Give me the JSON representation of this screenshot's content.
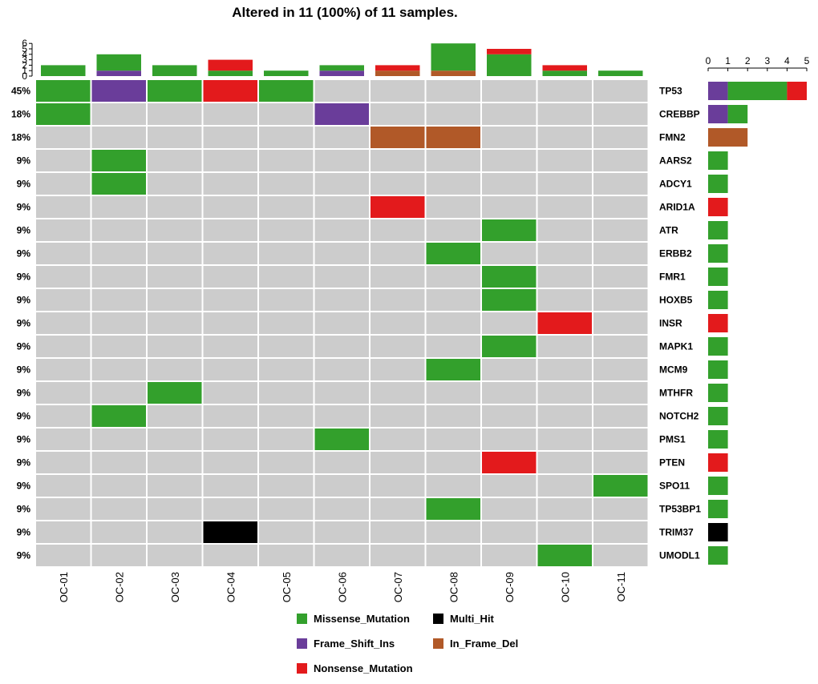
{
  "chart_data": {
    "type": "heatmap",
    "title": "Altered in 11 (100%) of 11 samples.",
    "samples": [
      "OC-01",
      "OC-02",
      "OC-03",
      "OC-04",
      "OC-05",
      "OC-06",
      "OC-07",
      "OC-08",
      "OC-09",
      "OC-10",
      "OC-11"
    ],
    "genes": [
      {
        "name": "TP53",
        "pct": "45%"
      },
      {
        "name": "CREBBP",
        "pct": "18%"
      },
      {
        "name": "FMN2",
        "pct": "18%"
      },
      {
        "name": "AARS2",
        "pct": "9%"
      },
      {
        "name": "ADCY1",
        "pct": "9%"
      },
      {
        "name": "ARID1A",
        "pct": "9%"
      },
      {
        "name": "ATR",
        "pct": "9%"
      },
      {
        "name": "ERBB2",
        "pct": "9%"
      },
      {
        "name": "FMR1",
        "pct": "9%"
      },
      {
        "name": "HOXB5",
        "pct": "9%"
      },
      {
        "name": "INSR",
        "pct": "9%"
      },
      {
        "name": "MAPK1",
        "pct": "9%"
      },
      {
        "name": "MCM9",
        "pct": "9%"
      },
      {
        "name": "MTHFR",
        "pct": "9%"
      },
      {
        "name": "NOTCH2",
        "pct": "9%"
      },
      {
        "name": "PMS1",
        "pct": "9%"
      },
      {
        "name": "PTEN",
        "pct": "9%"
      },
      {
        "name": "SPO11",
        "pct": "9%"
      },
      {
        "name": "TP53BP1",
        "pct": "9%"
      },
      {
        "name": "TRIM37",
        "pct": "9%"
      },
      {
        "name": "UMODL1",
        "pct": "9%"
      }
    ],
    "alterations": [
      [
        "TP53",
        "OC-01",
        "Missense_Mutation"
      ],
      [
        "TP53",
        "OC-02",
        "Frame_Shift_Ins"
      ],
      [
        "TP53",
        "OC-03",
        "Missense_Mutation"
      ],
      [
        "TP53",
        "OC-04",
        "Nonsense_Mutation"
      ],
      [
        "TP53",
        "OC-05",
        "Missense_Mutation"
      ],
      [
        "CREBBP",
        "OC-01",
        "Missense_Mutation"
      ],
      [
        "CREBBP",
        "OC-06",
        "Frame_Shift_Ins"
      ],
      [
        "FMN2",
        "OC-07",
        "In_Frame_Del"
      ],
      [
        "FMN2",
        "OC-08",
        "In_Frame_Del"
      ],
      [
        "AARS2",
        "OC-02",
        "Missense_Mutation"
      ],
      [
        "ADCY1",
        "OC-02",
        "Missense_Mutation"
      ],
      [
        "ARID1A",
        "OC-07",
        "Nonsense_Mutation"
      ],
      [
        "ATR",
        "OC-09",
        "Missense_Mutation"
      ],
      [
        "ERBB2",
        "OC-08",
        "Missense_Mutation"
      ],
      [
        "FMR1",
        "OC-09",
        "Missense_Mutation"
      ],
      [
        "HOXB5",
        "OC-09",
        "Missense_Mutation"
      ],
      [
        "INSR",
        "OC-10",
        "Nonsense_Mutation"
      ],
      [
        "MAPK1",
        "OC-09",
        "Missense_Mutation"
      ],
      [
        "MCM9",
        "OC-08",
        "Missense_Mutation"
      ],
      [
        "MTHFR",
        "OC-03",
        "Missense_Mutation"
      ],
      [
        "NOTCH2",
        "OC-02",
        "Missense_Mutation"
      ],
      [
        "PMS1",
        "OC-06",
        "Missense_Mutation"
      ],
      [
        "PTEN",
        "OC-09",
        "Nonsense_Mutation"
      ],
      [
        "SPO11",
        "OC-11",
        "Missense_Mutation"
      ],
      [
        "TP53BP1",
        "OC-08",
        "Missense_Mutation"
      ],
      [
        "TRIM37",
        "OC-04",
        "Multi_Hit"
      ],
      [
        "UMODL1",
        "OC-10",
        "Missense_Mutation"
      ]
    ],
    "top_bar": {
      "ylim": [
        0,
        6
      ],
      "ticks": [
        0,
        1,
        2,
        3,
        4,
        5,
        6
      ],
      "values": [
        {
          "sample": "OC-01",
          "segments": [
            [
              "Missense_Mutation",
              2
            ]
          ]
        },
        {
          "sample": "OC-02",
          "segments": [
            [
              "Frame_Shift_Ins",
              1
            ],
            [
              "Missense_Mutation",
              3
            ]
          ]
        },
        {
          "sample": "OC-03",
          "segments": [
            [
              "Missense_Mutation",
              2
            ]
          ]
        },
        {
          "sample": "OC-04",
          "segments": [
            [
              "Missense_Mutation",
              1
            ],
            [
              "Nonsense_Mutation",
              2
            ]
          ]
        },
        {
          "sample": "OC-05",
          "segments": [
            [
              "Missense_Mutation",
              1
            ]
          ]
        },
        {
          "sample": "OC-06",
          "segments": [
            [
              "Frame_Shift_Ins",
              1
            ],
            [
              "Missense_Mutation",
              1
            ]
          ]
        },
        {
          "sample": "OC-07",
          "segments": [
            [
              "In_Frame_Del",
              1
            ],
            [
              "Nonsense_Mutation",
              1
            ]
          ]
        },
        {
          "sample": "OC-08",
          "segments": [
            [
              "In_Frame_Del",
              1
            ],
            [
              "Missense_Mutation",
              5
            ]
          ]
        },
        {
          "sample": "OC-09",
          "segments": [
            [
              "Missense_Mutation",
              4
            ],
            [
              "Nonsense_Mutation",
              1
            ]
          ]
        },
        {
          "sample": "OC-10",
          "segments": [
            [
              "Missense_Mutation",
              1
            ],
            [
              "Nonsense_Mutation",
              1
            ]
          ]
        },
        {
          "sample": "OC-11",
          "segments": [
            [
              "Missense_Mutation",
              1
            ]
          ]
        }
      ]
    },
    "side_bar": {
      "xlim": [
        0,
        5
      ],
      "ticks": [
        0,
        1,
        2,
        3,
        4,
        5
      ],
      "values": [
        {
          "gene": "TP53",
          "segments": [
            [
              "Frame_Shift_Ins",
              1
            ],
            [
              "Missense_Mutation",
              3
            ],
            [
              "Nonsense_Mutation",
              1
            ]
          ]
        },
        {
          "gene": "CREBBP",
          "segments": [
            [
              "Frame_Shift_Ins",
              1
            ],
            [
              "Missense_Mutation",
              1
            ]
          ]
        },
        {
          "gene": "FMN2",
          "segments": [
            [
              "In_Frame_Del",
              2
            ]
          ]
        },
        {
          "gene": "AARS2",
          "segments": [
            [
              "Missense_Mutation",
              1
            ]
          ]
        },
        {
          "gene": "ADCY1",
          "segments": [
            [
              "Missense_Mutation",
              1
            ]
          ]
        },
        {
          "gene": "ARID1A",
          "segments": [
            [
              "Nonsense_Mutation",
              1
            ]
          ]
        },
        {
          "gene": "ATR",
          "segments": [
            [
              "Missense_Mutation",
              1
            ]
          ]
        },
        {
          "gene": "ERBB2",
          "segments": [
            [
              "Missense_Mutation",
              1
            ]
          ]
        },
        {
          "gene": "FMR1",
          "segments": [
            [
              "Missense_Mutation",
              1
            ]
          ]
        },
        {
          "gene": "HOXB5",
          "segments": [
            [
              "Missense_Mutation",
              1
            ]
          ]
        },
        {
          "gene": "INSR",
          "segments": [
            [
              "Nonsense_Mutation",
              1
            ]
          ]
        },
        {
          "gene": "MAPK1",
          "segments": [
            [
              "Missense_Mutation",
              1
            ]
          ]
        },
        {
          "gene": "MCM9",
          "segments": [
            [
              "Missense_Mutation",
              1
            ]
          ]
        },
        {
          "gene": "MTHFR",
          "segments": [
            [
              "Missense_Mutation",
              1
            ]
          ]
        },
        {
          "gene": "NOTCH2",
          "segments": [
            [
              "Missense_Mutation",
              1
            ]
          ]
        },
        {
          "gene": "PMS1",
          "segments": [
            [
              "Missense_Mutation",
              1
            ]
          ]
        },
        {
          "gene": "PTEN",
          "segments": [
            [
              "Nonsense_Mutation",
              1
            ]
          ]
        },
        {
          "gene": "SPO11",
          "segments": [
            [
              "Missense_Mutation",
              1
            ]
          ]
        },
        {
          "gene": "TP53BP1",
          "segments": [
            [
              "Missense_Mutation",
              1
            ]
          ]
        },
        {
          "gene": "TRIM37",
          "segments": [
            [
              "Multi_Hit",
              1
            ]
          ]
        },
        {
          "gene": "UMODL1",
          "segments": [
            [
              "Missense_Mutation",
              1
            ]
          ]
        }
      ]
    },
    "legend": [
      {
        "key": "Missense_Mutation",
        "label": "Missense_Mutation",
        "color": "#33a02c"
      },
      {
        "key": "Multi_Hit",
        "label": "Multi_Hit",
        "color": "#000000"
      },
      {
        "key": "Frame_Shift_Ins",
        "label": "Frame_Shift_Ins",
        "color": "#6a3d9a"
      },
      {
        "key": "In_Frame_Del",
        "label": "In_Frame_Del",
        "color": "#b15928"
      },
      {
        "key": "Nonsense_Mutation",
        "label": "Nonsense_Mutation",
        "color": "#e31a1c"
      }
    ],
    "empty_color": "#cccccc"
  }
}
